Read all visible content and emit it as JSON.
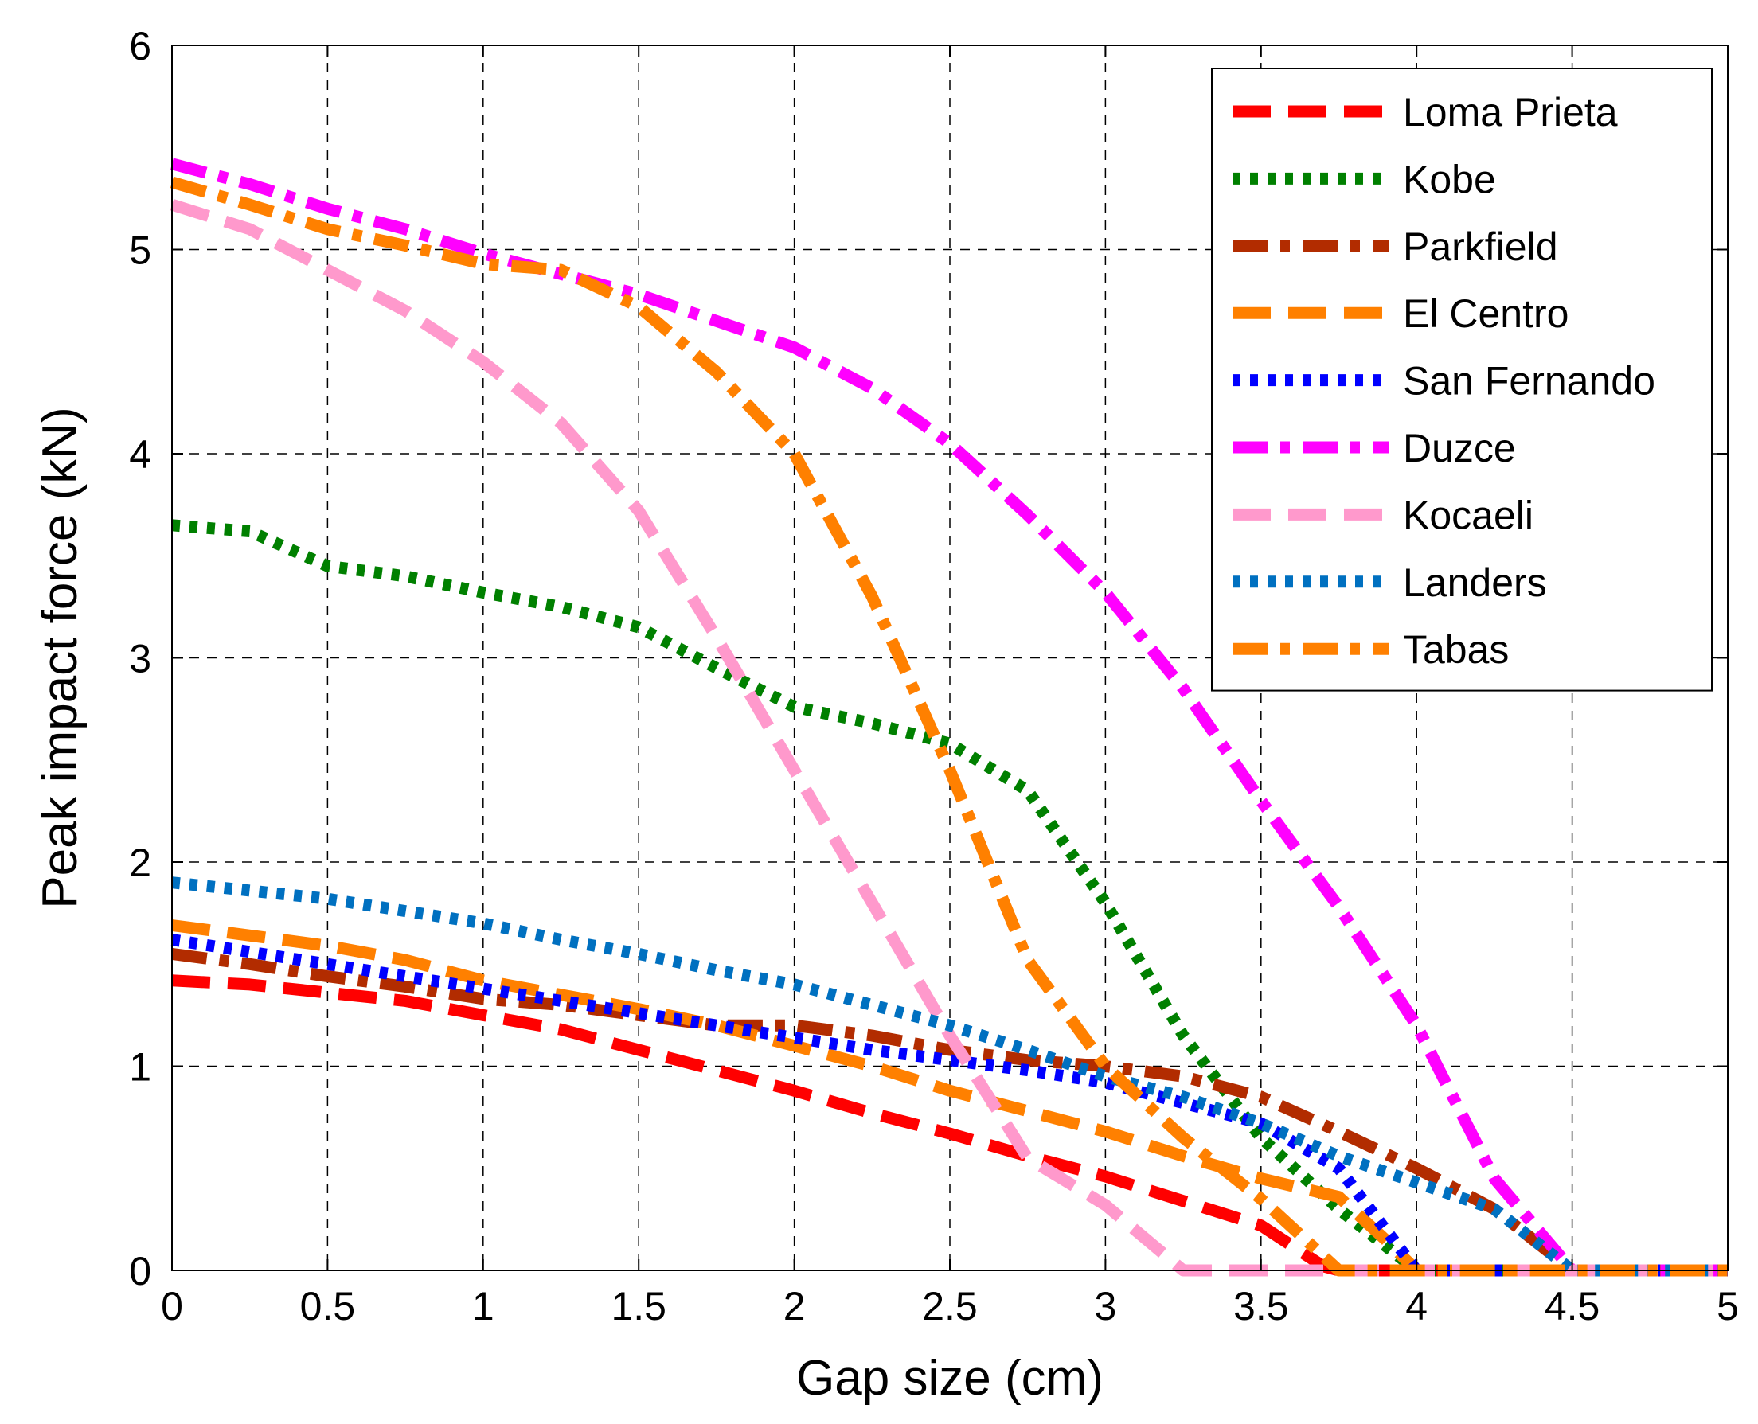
{
  "chart_data": {
    "type": "line",
    "title": "",
    "xlabel": "Gap size (cm)",
    "ylabel": "Peak impact force (kN)",
    "xlim": [
      0,
      5
    ],
    "ylim": [
      0,
      6
    ],
    "xticks": [
      "0",
      "0.5",
      "1",
      "1.5",
      "2",
      "2.5",
      "3",
      "3.5",
      "4",
      "4.5",
      "5"
    ],
    "yticks": [
      "0",
      "1",
      "2",
      "3",
      "4",
      "5",
      "6"
    ],
    "grid": true,
    "legend": "top-right",
    "series": [
      {
        "name": "Loma Prieta",
        "color": "#ff0000",
        "dash": "dash",
        "x": [
          0,
          0.25,
          0.5,
          0.75,
          1,
          1.25,
          1.5,
          1.75,
          2,
          2.25,
          2.5,
          2.75,
          3,
          3.25,
          3.5,
          3.6,
          3.7,
          3.75,
          4,
          4.25,
          4.5,
          4.75,
          5
        ],
        "y": [
          1.42,
          1.4,
          1.36,
          1.32,
          1.25,
          1.18,
          1.08,
          0.98,
          0.88,
          0.77,
          0.67,
          0.56,
          0.46,
          0.34,
          0.22,
          0.12,
          0.02,
          0,
          0,
          0,
          0,
          0,
          0
        ]
      },
      {
        "name": "Kobe",
        "color": "#008000",
        "dash": "dot",
        "x": [
          0,
          0.25,
          0.5,
          0.75,
          1,
          1.25,
          1.5,
          1.75,
          2,
          2.25,
          2.5,
          2.75,
          3,
          3.25,
          3.5,
          3.75,
          4,
          4.25,
          4.5,
          4.75,
          5
        ],
        "y": [
          3.65,
          3.62,
          3.45,
          3.4,
          3.32,
          3.25,
          3.15,
          2.95,
          2.76,
          2.68,
          2.58,
          2.35,
          1.8,
          1.15,
          0.65,
          0.3,
          0,
          0,
          0,
          0,
          0
        ]
      },
      {
        "name": "Parkfield",
        "color": "#b22c00",
        "dash": "dashdot",
        "x": [
          0,
          0.25,
          0.5,
          0.75,
          1,
          1.25,
          1.5,
          1.75,
          2,
          2.25,
          2.5,
          2.75,
          3,
          3.25,
          3.5,
          3.75,
          4,
          4.25,
          4.5,
          4.75,
          5
        ],
        "y": [
          1.55,
          1.5,
          1.44,
          1.39,
          1.33,
          1.3,
          1.25,
          1.2,
          1.2,
          1.15,
          1.08,
          1.03,
          1.0,
          0.95,
          0.85,
          0.68,
          0.5,
          0.3,
          0,
          0,
          0
        ]
      },
      {
        "name": "El Centro",
        "color": "#ff8000",
        "dash": "dash",
        "x": [
          0,
          0.25,
          0.5,
          0.75,
          1,
          1.25,
          1.5,
          1.75,
          2,
          2.25,
          2.5,
          2.75,
          3,
          3.25,
          3.5,
          3.75,
          3.9,
          4,
          4.25,
          4.5,
          4.75,
          5
        ],
        "y": [
          1.69,
          1.64,
          1.59,
          1.52,
          1.42,
          1.35,
          1.28,
          1.2,
          1.1,
          1.0,
          0.88,
          0.78,
          0.68,
          0.56,
          0.45,
          0.36,
          0.15,
          0,
          0,
          0,
          0,
          0
        ]
      },
      {
        "name": "San Fernando",
        "color": "#0000ff",
        "dash": "dot",
        "x": [
          0,
          0.25,
          0.5,
          0.75,
          1,
          1.25,
          1.5,
          1.75,
          2,
          2.25,
          2.5,
          2.75,
          3,
          3.25,
          3.5,
          3.75,
          3.85,
          4,
          4.25,
          4.5,
          4.75,
          5
        ],
        "y": [
          1.62,
          1.56,
          1.5,
          1.44,
          1.38,
          1.32,
          1.26,
          1.2,
          1.14,
          1.08,
          1.03,
          0.98,
          0.92,
          0.82,
          0.72,
          0.5,
          0.3,
          0,
          0,
          0,
          0,
          0
        ]
      },
      {
        "name": "Duzce",
        "color": "#ff00ff",
        "dash": "dashdot",
        "x": [
          0,
          0.25,
          0.5,
          0.75,
          1,
          1.25,
          1.5,
          1.75,
          2,
          2.25,
          2.5,
          2.75,
          3,
          3.25,
          3.5,
          3.75,
          4,
          4.25,
          4.5,
          4.75,
          5
        ],
        "y": [
          5.42,
          5.32,
          5.2,
          5.1,
          4.98,
          4.88,
          4.78,
          4.65,
          4.52,
          4.32,
          4.05,
          3.7,
          3.32,
          2.85,
          2.3,
          1.78,
          1.2,
          0.45,
          0,
          0,
          0
        ]
      },
      {
        "name": "Kocaeli",
        "color": "#ff99cc",
        "dash": "dash",
        "x": [
          0,
          0.25,
          0.5,
          0.75,
          1,
          1.25,
          1.5,
          1.75,
          2,
          2.25,
          2.5,
          2.75,
          3,
          3.25,
          3.5,
          3.75,
          4,
          4.25,
          4.5,
          4.75,
          5
        ],
        "y": [
          5.22,
          5.1,
          4.9,
          4.7,
          4.45,
          4.15,
          3.72,
          3.1,
          2.45,
          1.8,
          1.15,
          0.55,
          0.32,
          0,
          0,
          0,
          0,
          0,
          0,
          0,
          0
        ]
      },
      {
        "name": "Landers",
        "color": "#0070c0",
        "dash": "dot",
        "x": [
          0,
          0.25,
          0.5,
          0.75,
          1,
          1.25,
          1.5,
          1.75,
          2,
          2.25,
          2.5,
          2.75,
          3,
          3.25,
          3.5,
          3.75,
          4,
          4.25,
          4.5,
          4.75,
          5
        ],
        "y": [
          1.9,
          1.86,
          1.82,
          1.76,
          1.7,
          1.62,
          1.55,
          1.47,
          1.4,
          1.3,
          1.2,
          1.08,
          0.95,
          0.85,
          0.72,
          0.56,
          0.43,
          0.3,
          0,
          0,
          0
        ]
      },
      {
        "name": "Tabas",
        "color": "#ff8000",
        "dash": "dashdot",
        "x": [
          0,
          0.25,
          0.5,
          0.75,
          1,
          1.25,
          1.5,
          1.75,
          2,
          2.25,
          2.5,
          2.75,
          3,
          3.25,
          3.5,
          3.75,
          4,
          4.25,
          4.5,
          4.75,
          5
        ],
        "y": [
          5.33,
          5.22,
          5.1,
          5.02,
          4.93,
          4.9,
          4.72,
          4.4,
          4.0,
          3.3,
          2.45,
          1.52,
          1.0,
          0.65,
          0.35,
          0,
          0,
          0,
          0,
          0,
          0
        ]
      }
    ]
  }
}
